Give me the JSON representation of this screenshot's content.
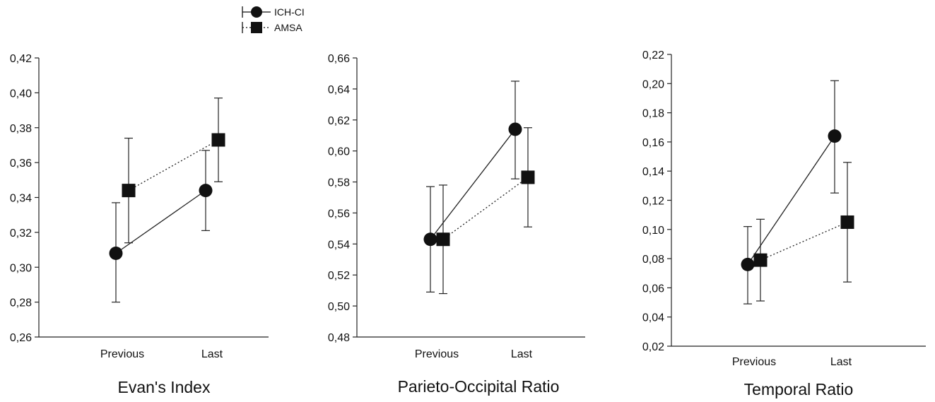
{
  "legend": {
    "items": [
      {
        "label": "ICH-CI",
        "marker": "circle",
        "line": "solid"
      },
      {
        "label": "AMSA",
        "marker": "square",
        "line": "dotted"
      }
    ]
  },
  "chart_data": [
    {
      "type": "line",
      "title": "Evan's Index",
      "categories": [
        "Previous",
        "Last"
      ],
      "ylim": [
        0.26,
        0.42
      ],
      "yticks": [
        "0,26",
        "0,28",
        "0,30",
        "0,32",
        "0,34",
        "0,36",
        "0,38",
        "0,40",
        "0,42"
      ],
      "series": [
        {
          "name": "ICH-CI",
          "values": [
            0.308,
            0.344
          ],
          "err_low": [
            0.28,
            0.321
          ],
          "err_high": [
            0.337,
            0.367
          ]
        },
        {
          "name": "AMSA",
          "values": [
            0.344,
            0.373
          ],
          "err_low": [
            0.314,
            0.349
          ],
          "err_high": [
            0.374,
            0.397
          ]
        }
      ]
    },
    {
      "type": "line",
      "title": "Parieto-Occipital Ratio",
      "categories": [
        "Previous",
        "Last"
      ],
      "ylim": [
        0.48,
        0.66
      ],
      "yticks": [
        "0,48",
        "0,50",
        "0,52",
        "0,54",
        "0,56",
        "0,58",
        "0,60",
        "0,62",
        "0,64",
        "0,66"
      ],
      "series": [
        {
          "name": "ICH-CI",
          "values": [
            0.543,
            0.614
          ],
          "err_low": [
            0.509,
            0.582
          ],
          "err_high": [
            0.577,
            0.645
          ]
        },
        {
          "name": "AMSA",
          "values": [
            0.543,
            0.583
          ],
          "err_low": [
            0.508,
            0.551
          ],
          "err_high": [
            0.578,
            0.615
          ]
        }
      ]
    },
    {
      "type": "line",
      "title": "Temporal Ratio",
      "categories": [
        "Previous",
        "Last"
      ],
      "ylim": [
        0.02,
        0.22
      ],
      "yticks": [
        "0,02",
        "0,04",
        "0,06",
        "0,08",
        "0,10",
        "0,12",
        "0,14",
        "0,16",
        "0,18",
        "0,20",
        "0,22"
      ],
      "series": [
        {
          "name": "ICH-CI",
          "values": [
            0.076,
            0.164
          ],
          "err_low": [
            0.049,
            0.125
          ],
          "err_high": [
            0.102,
            0.202
          ]
        },
        {
          "name": "AMSA",
          "values": [
            0.079,
            0.105
          ],
          "err_low": [
            0.051,
            0.064
          ],
          "err_high": [
            0.107,
            0.146
          ]
        }
      ]
    }
  ]
}
